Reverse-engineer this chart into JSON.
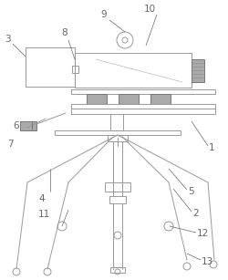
{
  "background_color": "#ffffff",
  "line_color": "#999999",
  "dark_color": "#777777",
  "label_color": "#666666",
  "line_width": 0.7,
  "font_size": 7.5
}
